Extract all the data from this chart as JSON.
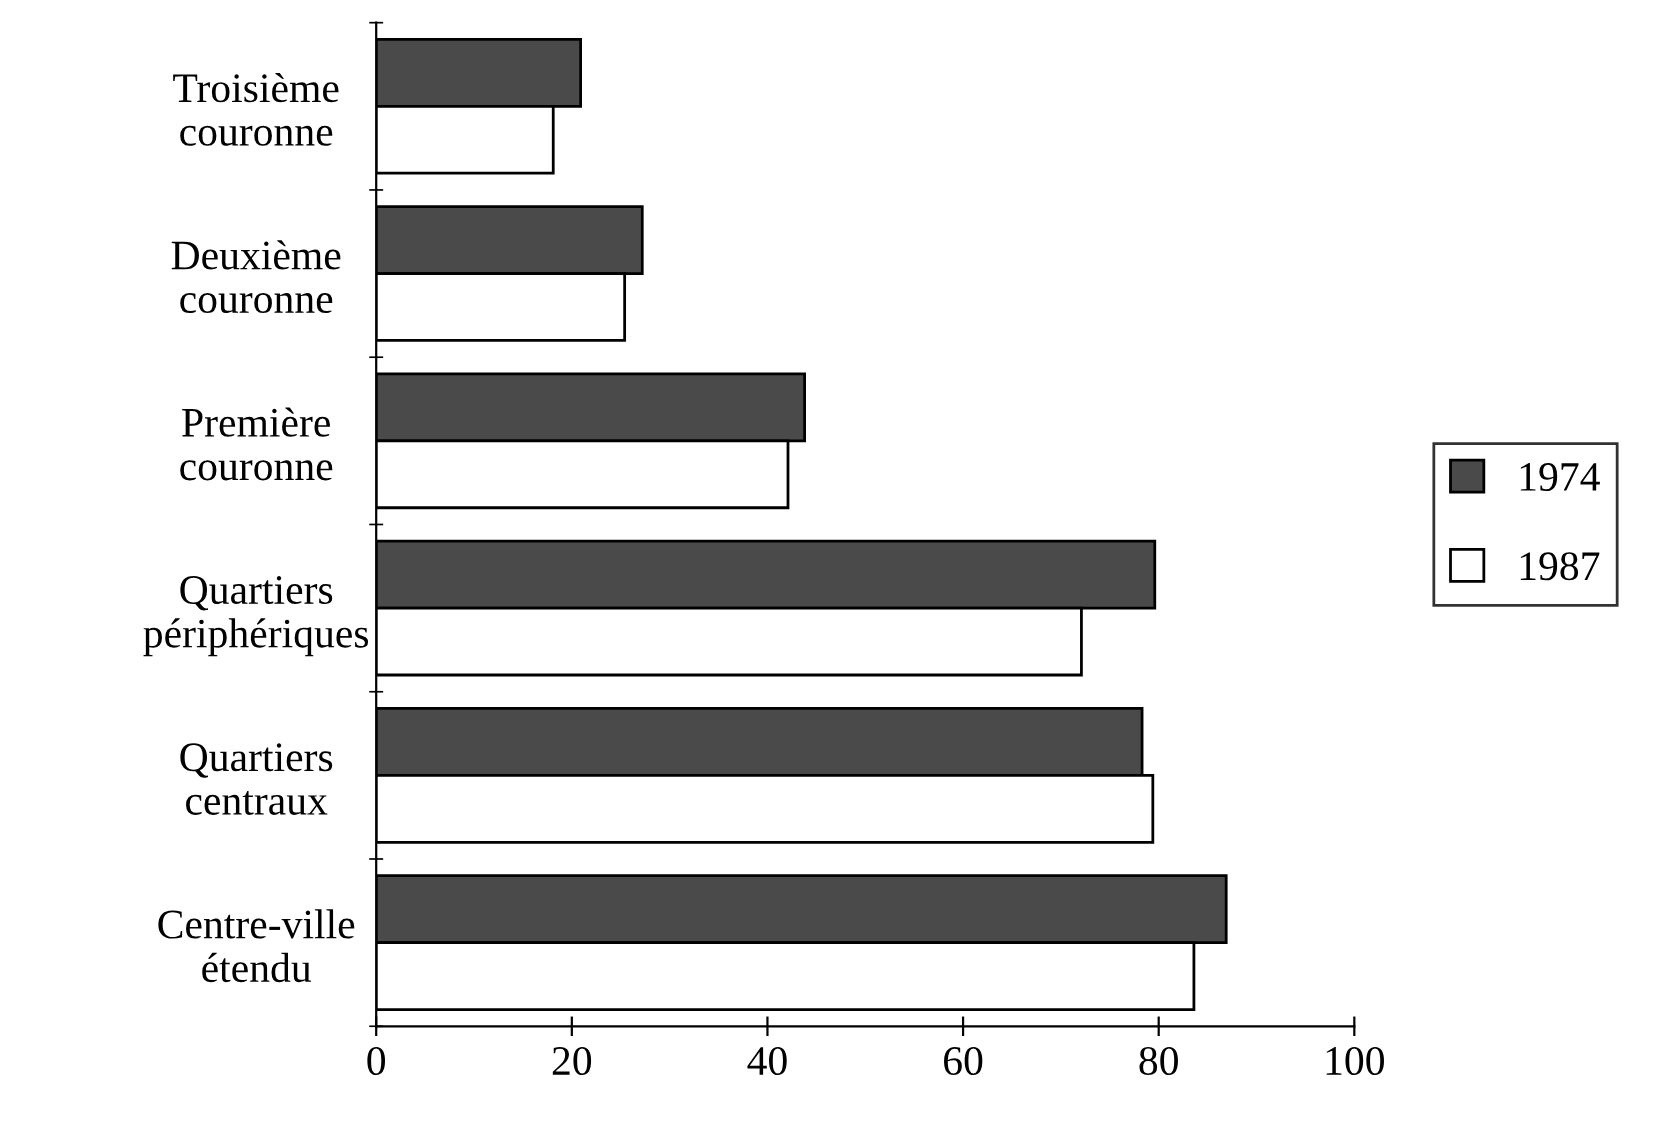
{
  "chart_data": {
    "type": "bar",
    "orientation": "horizontal",
    "categories": [
      "Troisième\ncouronne",
      "Deuxième\ncouronne",
      "Première\ncouronne",
      "Quartiers\npériphériques",
      "Quartiers\ncentraux",
      "Centre-ville\nétendu"
    ],
    "series": [
      {
        "name": "1974",
        "color": "#4a4a4a",
        "values": [
          20.9,
          27.2,
          43.8,
          79.6,
          78.3,
          86.9
        ]
      },
      {
        "name": "1987",
        "color": "#ffffff",
        "values": [
          18.1,
          25.4,
          42.1,
          72.1,
          79.4,
          83.6
        ]
      }
    ],
    "xlim": [
      0,
      100
    ],
    "xticks": [
      0,
      20,
      40,
      60,
      80,
      100
    ],
    "grid": false,
    "legend": "right"
  }
}
